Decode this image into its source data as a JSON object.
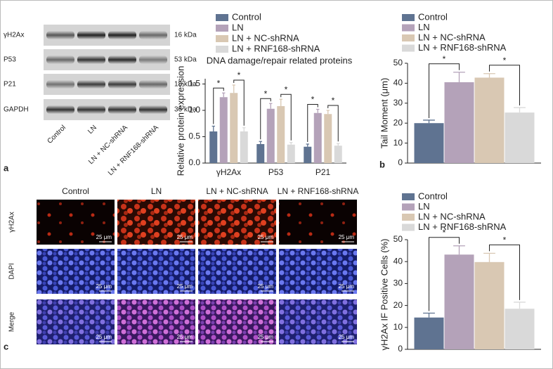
{
  "blot": {
    "proteins": [
      "γH2Ax",
      "P53",
      "P21",
      "GAPDH"
    ],
    "sizes": [
      "16 kDa",
      "53 kDa",
      "18 kDa",
      "36 kDa"
    ],
    "lanes": [
      "Control",
      "LN",
      "LN + NC-shRNA",
      "LN + RNF168-shRNA"
    ]
  },
  "microscopy": {
    "columns": [
      "Control",
      "LN",
      "LN + NC-shRNA",
      "LN + RNF168-shRNA"
    ],
    "rows": [
      "γH2Ax",
      "DAPI",
      "Merge"
    ],
    "scale_bar": "25 μm"
  },
  "panels": [
    "a",
    "b",
    "c"
  ],
  "chart_data": [
    {
      "type": "bar",
      "title": "DNA damage/repair related proteins",
      "ylabel": "Relative protein expression",
      "categories": [
        "γH2Ax",
        "P53",
        "P21"
      ],
      "series": [
        {
          "name": "Control",
          "color": "#5f7391",
          "values": [
            0.6,
            0.36,
            0.31
          ],
          "errors": [
            0.1,
            0.05,
            0.05
          ]
        },
        {
          "name": "LN",
          "color": "#b4a2b9",
          "values": [
            1.25,
            1.03,
            0.95
          ],
          "errors": [
            0.08,
            0.1,
            0.07
          ]
        },
        {
          "name": "LN + NC-shRNA",
          "color": "#d9c8b3",
          "values": [
            1.33,
            1.08,
            0.93
          ],
          "errors": [
            0.15,
            0.13,
            0.07
          ]
        },
        {
          "name": "LN + RNF168-shRNA",
          "color": "#d9d9d9",
          "values": [
            0.6,
            0.35,
            0.33
          ],
          "errors": [
            0.07,
            0.04,
            0.04
          ]
        }
      ],
      "ylim": [
        0,
        1.6
      ],
      "yticks": [
        {
          "value": 0,
          "label": "0.0"
        },
        {
          "value": 0.5,
          "label": "0.5"
        },
        {
          "value": 1,
          "label": "1.0"
        },
        {
          "value": 1.5,
          "label": "1.5"
        }
      ],
      "annotations": [
        "*",
        "*",
        "*",
        "*",
        "*",
        "*"
      ]
    },
    {
      "type": "bar",
      "ylabel": "Tail Moment (μm)",
      "series": [
        {
          "name": "Control",
          "color": "#5f7391",
          "values": [
            20
          ],
          "errors": [
            1.5
          ]
        },
        {
          "name": "LN",
          "color": "#b4a2b9",
          "values": [
            40.5
          ],
          "errors": [
            5
          ]
        },
        {
          "name": "LN + NC-shRNA",
          "color": "#d9c8b3",
          "values": [
            42.8
          ],
          "errors": [
            2
          ]
        },
        {
          "name": "LN + RNF168-shRNA",
          "color": "#d9d9d9",
          "values": [
            25.3
          ],
          "errors": [
            2.5
          ]
        }
      ],
      "ylim": [
        0,
        50
      ],
      "yticks": [
        0,
        10,
        20,
        30,
        40,
        50
      ],
      "annotations": [
        "*",
        "*"
      ]
    },
    {
      "type": "bar",
      "ylabel": "γH2Ax IF Positive Cells (%)",
      "series": [
        {
          "name": "Control",
          "color": "#5f7391",
          "values": [
            14.5
          ],
          "errors": [
            2
          ]
        },
        {
          "name": "LN",
          "color": "#b4a2b9",
          "values": [
            43.2
          ],
          "errors": [
            4
          ]
        },
        {
          "name": "LN + NC-shRNA",
          "color": "#d9c8b3",
          "values": [
            39.8
          ],
          "errors": [
            4
          ]
        },
        {
          "name": "LN + RNF168-shRNA",
          "color": "#d9d9d9",
          "values": [
            18.5
          ],
          "errors": [
            3
          ]
        }
      ],
      "ylim": [
        0,
        50
      ],
      "yticks": [
        0,
        10,
        20,
        30,
        40,
        50
      ],
      "annotations": [
        "*",
        "*"
      ]
    }
  ]
}
